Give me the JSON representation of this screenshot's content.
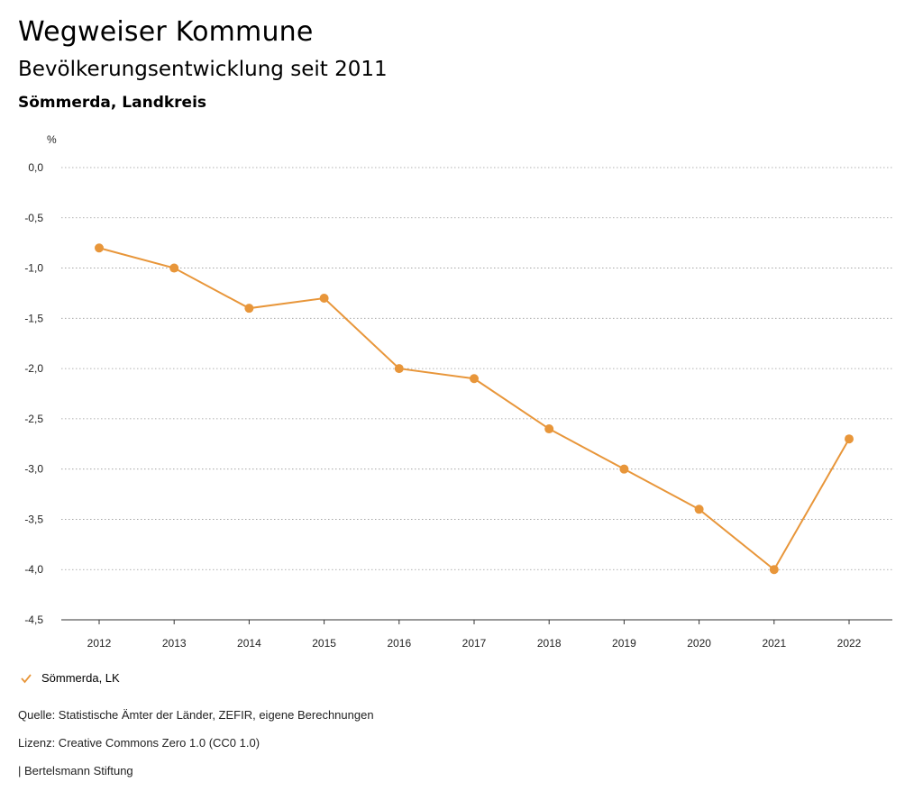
{
  "header": {
    "title": "Wegweiser Kommune",
    "subtitle": "Bevölkerungsentwicklung seit 2011",
    "region": "Sömmerda, Landkreis"
  },
  "chart_data": {
    "type": "line",
    "ylabel": "%",
    "x": [
      "2012",
      "2013",
      "2014",
      "2015",
      "2016",
      "2017",
      "2018",
      "2019",
      "2020",
      "2021",
      "2022"
    ],
    "ylim": [
      -4.5,
      0.0
    ],
    "yticks": [
      "0,0",
      "-0,5",
      "-1,0",
      "-1,5",
      "-2,0",
      "-2,5",
      "-3,0",
      "-3,5",
      "-4,0",
      "-4,5"
    ],
    "grid": true,
    "legend_position": "bottom-left",
    "series": [
      {
        "name": "Sömmerda, LK",
        "color": "#E8963A",
        "values": [
          -0.8,
          -1.0,
          -1.4,
          -1.3,
          -2.0,
          -2.1,
          -2.6,
          -3.0,
          -3.4,
          -4.0,
          -2.7
        ]
      }
    ]
  },
  "footer": {
    "source": "Quelle: Statistische Ämter der Länder, ZEFIR, eigene Berechnungen",
    "license": "Lizenz: Creative Commons Zero 1.0 (CC0 1.0)",
    "publisher": "| Bertelsmann Stiftung"
  }
}
